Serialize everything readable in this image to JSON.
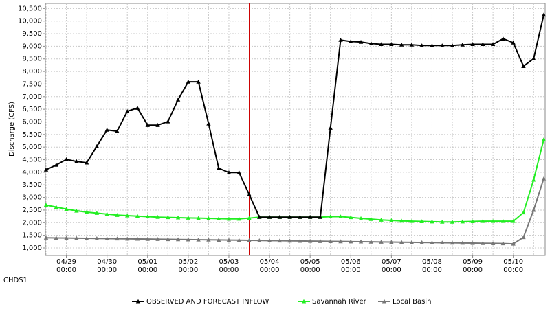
{
  "chart_data": {
    "type": "line",
    "title_bottom_left": "CHDS1",
    "y_label": "Discharge (CFS)",
    "x": [
      "04/28 12:00",
      "04/28 18:00",
      "04/29 00:00",
      "04/29 06:00",
      "04/29 12:00",
      "04/29 18:00",
      "04/30 00:00",
      "04/30 06:00",
      "04/30 12:00",
      "04/30 18:00",
      "05/01 00:00",
      "05/01 06:00",
      "05/01 12:00",
      "05/01 18:00",
      "05/02 00:00",
      "05/02 06:00",
      "05/02 12:00",
      "05/02 18:00",
      "05/03 00:00",
      "05/03 06:00",
      "05/03 12:00",
      "05/03 18:00",
      "05/04 00:00",
      "05/04 06:00",
      "05/04 12:00",
      "05/04 18:00",
      "05/05 00:00",
      "05/05 06:00",
      "05/05 12:00",
      "05/05 18:00",
      "05/06 00:00",
      "05/06 06:00",
      "05/06 12:00",
      "05/06 18:00",
      "05/07 00:00",
      "05/07 06:00",
      "05/07 12:00",
      "05/07 18:00",
      "05/08 00:00",
      "05/08 06:00",
      "05/08 12:00",
      "05/08 18:00",
      "05/09 00:00",
      "05/09 06:00",
      "05/09 12:00",
      "05/09 18:00",
      "05/10 00:00",
      "05/10 06:00",
      "05/10 12:00",
      "05/10 18:00"
    ],
    "series": [
      {
        "name": "OBSERVED AND FORECAST INFLOW",
        "color": "#000000",
        "values": [
          4100,
          4290,
          4510,
          4430,
          4380,
          5030,
          5680,
          5630,
          6420,
          6550,
          5870,
          5870,
          6010,
          6880,
          7590,
          7590,
          5930,
          4160,
          3990,
          3990,
          3120,
          2220,
          2220,
          2220,
          2220,
          2220,
          2220,
          2220,
          5760,
          9250,
          9190,
          9170,
          9110,
          9080,
          9080,
          9060,
          9060,
          9030,
          9030,
          9030,
          9030,
          9060,
          9080,
          9080,
          9080,
          9300,
          9140,
          8210,
          8510,
          10250
        ]
      },
      {
        "name": "Savannah River",
        "color": "#22ee22",
        "values": [
          2700,
          2620,
          2540,
          2470,
          2420,
          2380,
          2340,
          2300,
          2280,
          2260,
          2240,
          2220,
          2210,
          2200,
          2190,
          2180,
          2170,
          2160,
          2150,
          2150,
          2180,
          2220,
          2220,
          2220,
          2220,
          2220,
          2220,
          2220,
          2240,
          2240,
          2210,
          2170,
          2140,
          2110,
          2090,
          2070,
          2060,
          2050,
          2040,
          2030,
          2030,
          2040,
          2050,
          2060,
          2060,
          2060,
          2060,
          2400,
          3700,
          5300
        ]
      },
      {
        "name": "Local Basin",
        "color": "#777777",
        "values": [
          1400,
          1395,
          1390,
          1385,
          1380,
          1375,
          1370,
          1365,
          1360,
          1355,
          1350,
          1345,
          1340,
          1335,
          1330,
          1325,
          1320,
          1315,
          1310,
          1305,
          1300,
          1295,
          1290,
          1285,
          1280,
          1275,
          1270,
          1265,
          1260,
          1255,
          1250,
          1245,
          1240,
          1235,
          1230,
          1225,
          1220,
          1215,
          1210,
          1205,
          1200,
          1195,
          1190,
          1185,
          1180,
          1175,
          1160,
          1420,
          2500,
          3750
        ]
      }
    ],
    "ylim": [
      700,
      10700
    ],
    "yticks": [
      {
        "value": 1000,
        "label": "1,000"
      },
      {
        "value": 1500,
        "label": "1,500"
      },
      {
        "value": 2000,
        "label": "2,000"
      },
      {
        "value": 2500,
        "label": "2,500"
      },
      {
        "value": 3000,
        "label": "3,000"
      },
      {
        "value": 3500,
        "label": "3,500"
      },
      {
        "value": 4000,
        "label": "4,000"
      },
      {
        "value": 4500,
        "label": "4,500"
      },
      {
        "value": 5000,
        "label": "5,000"
      },
      {
        "value": 5500,
        "label": "5,500"
      },
      {
        "value": 6000,
        "label": "6,000"
      },
      {
        "value": 6500,
        "label": "6,500"
      },
      {
        "value": 7000,
        "label": "7,000"
      },
      {
        "value": 7500,
        "label": "7,500"
      },
      {
        "value": 8000,
        "label": "8,000"
      },
      {
        "value": 8500,
        "label": "8,500"
      },
      {
        "value": 9000,
        "label": "9,000"
      },
      {
        "value": 9500,
        "label": "9,500"
      },
      {
        "value": 10000,
        "label": "10,000"
      },
      {
        "value": 10500,
        "label": "10,500"
      }
    ],
    "xticks": [
      {
        "value": "04/29 00:00",
        "label": [
          "04/29",
          "00:00"
        ]
      },
      {
        "value": "04/30 00:00",
        "label": [
          "04/30",
          "00:00"
        ]
      },
      {
        "value": "05/01 00:00",
        "label": [
          "05/01",
          "00:00"
        ]
      },
      {
        "value": "05/02 00:00",
        "label": [
          "05/02",
          "00:00"
        ]
      },
      {
        "value": "05/03 00:00",
        "label": [
          "05/03",
          "00:00"
        ]
      },
      {
        "value": "05/04 00:00",
        "label": [
          "05/04",
          "00:00"
        ]
      },
      {
        "value": "05/05 00:00",
        "label": [
          "05/05",
          "00:00"
        ]
      },
      {
        "value": "05/06 00:00",
        "label": [
          "05/06",
          "00:00"
        ]
      },
      {
        "value": "05/07 00:00",
        "label": [
          "05/07",
          "00:00"
        ]
      },
      {
        "value": "05/08 00:00",
        "label": [
          "05/08",
          "00:00"
        ]
      },
      {
        "value": "05/09 00:00",
        "label": [
          "05/09",
          "00:00"
        ]
      },
      {
        "value": "05/10 00:00",
        "label": [
          "05/10",
          "00:00"
        ]
      }
    ],
    "grid": true,
    "legend": "bottom",
    "now_line": {
      "x": "05/03 12:00",
      "color": "#cc0000"
    }
  }
}
